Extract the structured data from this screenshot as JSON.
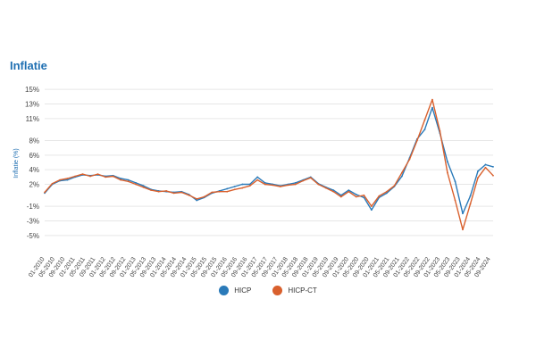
{
  "chart_data": {
    "type": "line",
    "title": "Inflatie",
    "ylabel": "Inflatie (%)",
    "xlabel": "",
    "ylim": [
      -6,
      16
    ],
    "y_ticks": [
      "15%",
      "13%",
      "11%",
      "8%",
      "6%",
      "4%",
      "2%",
      "-1%",
      "-3%",
      "-5%"
    ],
    "y_tick_values": [
      15,
      13,
      11,
      8,
      6,
      4,
      2,
      -1,
      -3,
      -5
    ],
    "x_range": [
      "2010-01",
      "2024-10"
    ],
    "x_ticks": [
      "01-2010",
      "05-2010",
      "09-2010",
      "01-2011",
      "05-2011",
      "09-2011",
      "01-2012",
      "05-2012",
      "09-2012",
      "01-2013",
      "05-2013",
      "09-2013",
      "01-2014",
      "05-2014",
      "09-2014",
      "01-2015",
      "05-2015",
      "09-2015",
      "01-2016",
      "05-2016",
      "09-2016",
      "01-2017",
      "05-2017",
      "09-2017",
      "01-2018",
      "05-2018",
      "09-2018",
      "01-2019",
      "05-2019",
      "09-2019",
      "01-2020",
      "05-2020",
      "09-2020",
      "01-2021",
      "05-2021",
      "09-2021",
      "01-2022",
      "05-2022",
      "09-2022",
      "01-2023",
      "05-2023",
      "09-2023",
      "01-2024",
      "05-2024",
      "09-2024"
    ],
    "x_tick_dates": [
      "2010-01",
      "2010-05",
      "2010-09",
      "2011-01",
      "2011-05",
      "2011-09",
      "2012-01",
      "2012-05",
      "2012-09",
      "2013-01",
      "2013-05",
      "2013-09",
      "2014-01",
      "2014-05",
      "2014-09",
      "2015-01",
      "2015-05",
      "2015-09",
      "2016-01",
      "2016-05",
      "2016-09",
      "2017-01",
      "2017-05",
      "2017-09",
      "2018-01",
      "2018-05",
      "2018-09",
      "2019-01",
      "2019-05",
      "2019-09",
      "2020-01",
      "2020-05",
      "2020-09",
      "2021-01",
      "2021-05",
      "2021-09",
      "2022-01",
      "2022-05",
      "2022-09",
      "2023-01",
      "2023-05",
      "2023-09",
      "2024-01",
      "2024-05",
      "2024-09"
    ],
    "grid": true,
    "legend_position": "bottom-center",
    "series": [
      {
        "name": "HICP",
        "color": "#2a7ab9",
        "points": [
          [
            "2010-01",
            0.8
          ],
          [
            "2010-04",
            2.0
          ],
          [
            "2010-07",
            2.5
          ],
          [
            "2010-10",
            2.6
          ],
          [
            "2011-01",
            3.0
          ],
          [
            "2011-04",
            3.3
          ],
          [
            "2011-07",
            3.2
          ],
          [
            "2011-10",
            3.3
          ],
          [
            "2012-01",
            3.1
          ],
          [
            "2012-04",
            3.2
          ],
          [
            "2012-07",
            2.8
          ],
          [
            "2012-10",
            2.6
          ],
          [
            "2013-01",
            2.2
          ],
          [
            "2013-04",
            1.8
          ],
          [
            "2013-07",
            1.3
          ],
          [
            "2013-10",
            1.1
          ],
          [
            "2014-01",
            1.0
          ],
          [
            "2014-04",
            0.9
          ],
          [
            "2014-07",
            1.0
          ],
          [
            "2014-10",
            0.6
          ],
          [
            "2015-01",
            -0.2
          ],
          [
            "2015-04",
            0.2
          ],
          [
            "2015-07",
            0.8
          ],
          [
            "2015-10",
            1.1
          ],
          [
            "2016-01",
            1.4
          ],
          [
            "2016-04",
            1.7
          ],
          [
            "2016-07",
            2.0
          ],
          [
            "2016-10",
            2.0
          ],
          [
            "2017-01",
            3.0
          ],
          [
            "2017-04",
            2.2
          ],
          [
            "2017-07",
            2.0
          ],
          [
            "2017-10",
            1.8
          ],
          [
            "2018-01",
            2.0
          ],
          [
            "2018-04",
            2.2
          ],
          [
            "2018-07",
            2.6
          ],
          [
            "2018-10",
            3.0
          ],
          [
            "2019-01",
            2.1
          ],
          [
            "2019-04",
            1.6
          ],
          [
            "2019-07",
            1.2
          ],
          [
            "2019-10",
            0.5
          ],
          [
            "2020-01",
            1.2
          ],
          [
            "2020-04",
            0.6
          ],
          [
            "2020-07",
            0.2
          ],
          [
            "2020-10",
            -1.5
          ],
          [
            "2021-01",
            0.2
          ],
          [
            "2021-04",
            0.8
          ],
          [
            "2021-07",
            1.7
          ],
          [
            "2021-10",
            3.1
          ],
          [
            "2022-01",
            5.6
          ],
          [
            "2022-04",
            8.2
          ],
          [
            "2022-07",
            9.5
          ],
          [
            "2022-10",
            12.5
          ],
          [
            "2023-01",
            9.0
          ],
          [
            "2023-04",
            5.1
          ],
          [
            "2023-07",
            2.4
          ],
          [
            "2023-10",
            -2.0
          ],
          [
            "2024-01",
            0.4
          ],
          [
            "2024-04",
            3.8
          ],
          [
            "2024-07",
            4.7
          ],
          [
            "2024-10",
            4.4
          ]
        ]
      },
      {
        "name": "HICP-CT",
        "color": "#d9602d",
        "points": [
          [
            "2010-01",
            0.9
          ],
          [
            "2010-04",
            2.1
          ],
          [
            "2010-07",
            2.6
          ],
          [
            "2010-10",
            2.8
          ],
          [
            "2011-01",
            3.1
          ],
          [
            "2011-04",
            3.4
          ],
          [
            "2011-07",
            3.1
          ],
          [
            "2011-10",
            3.4
          ],
          [
            "2012-01",
            3.0
          ],
          [
            "2012-04",
            3.1
          ],
          [
            "2012-07",
            2.6
          ],
          [
            "2012-10",
            2.4
          ],
          [
            "2013-01",
            2.0
          ],
          [
            "2013-04",
            1.6
          ],
          [
            "2013-07",
            1.2
          ],
          [
            "2013-10",
            1.0
          ],
          [
            "2014-01",
            1.1
          ],
          [
            "2014-04",
            0.8
          ],
          [
            "2014-07",
            0.9
          ],
          [
            "2014-10",
            0.5
          ],
          [
            "2015-01",
            0.0
          ],
          [
            "2015-04",
            0.3
          ],
          [
            "2015-07",
            0.9
          ],
          [
            "2015-10",
            1.0
          ],
          [
            "2016-01",
            1.0
          ],
          [
            "2016-04",
            1.3
          ],
          [
            "2016-07",
            1.5
          ],
          [
            "2016-10",
            1.8
          ],
          [
            "2017-01",
            2.6
          ],
          [
            "2017-04",
            2.0
          ],
          [
            "2017-07",
            1.9
          ],
          [
            "2017-10",
            1.7
          ],
          [
            "2018-01",
            1.9
          ],
          [
            "2018-04",
            2.0
          ],
          [
            "2018-07",
            2.5
          ],
          [
            "2018-10",
            2.9
          ],
          [
            "2019-01",
            2.0
          ],
          [
            "2019-04",
            1.5
          ],
          [
            "2019-07",
            1.0
          ],
          [
            "2019-10",
            0.3
          ],
          [
            "2020-01",
            1.0
          ],
          [
            "2020-04",
            0.3
          ],
          [
            "2020-07",
            0.5
          ],
          [
            "2020-10",
            -1.0
          ],
          [
            "2021-01",
            0.4
          ],
          [
            "2021-04",
            1.0
          ],
          [
            "2021-07",
            1.8
          ],
          [
            "2021-10",
            3.6
          ],
          [
            "2022-01",
            5.4
          ],
          [
            "2022-04",
            8.0
          ],
          [
            "2022-07",
            10.8
          ],
          [
            "2022-10",
            13.6
          ],
          [
            "2023-01",
            9.3
          ],
          [
            "2023-04",
            3.6
          ],
          [
            "2023-07",
            -0.2
          ],
          [
            "2023-10",
            -4.2
          ],
          [
            "2024-01",
            -0.7
          ],
          [
            "2024-04",
            2.9
          ],
          [
            "2024-07",
            4.3
          ],
          [
            "2024-10",
            3.2
          ]
        ]
      }
    ]
  }
}
